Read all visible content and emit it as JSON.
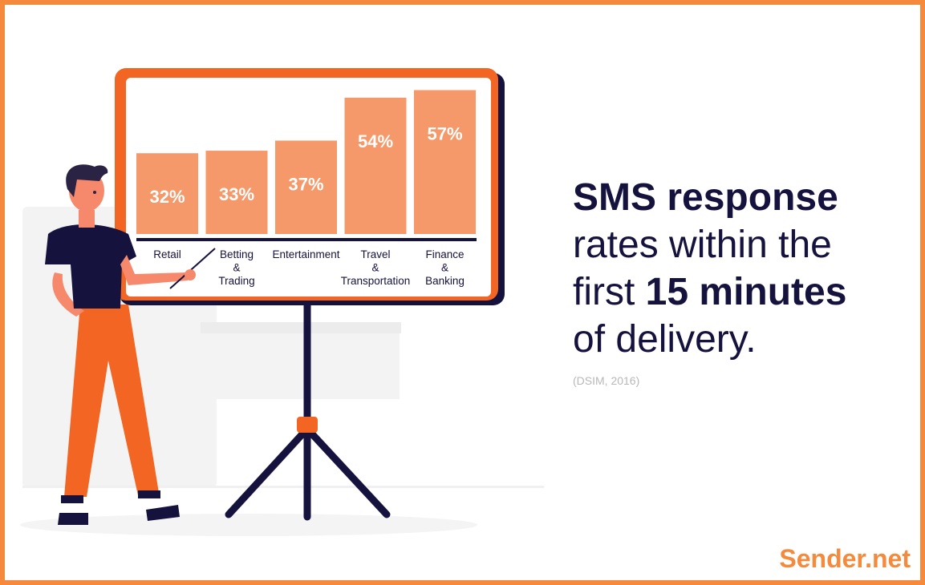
{
  "chart_data": {
    "type": "bar",
    "categories": [
      "Retail",
      "Betting & Trading",
      "Entertainment",
      "Travel & Transportation",
      "Finance & Banking"
    ],
    "values": [
      32,
      33,
      37,
      54,
      57
    ],
    "value_labels": [
      "32%",
      "33%",
      "37%",
      "54%",
      "57%"
    ],
    "color": "#f6996a"
  },
  "headline": [
    {
      "text": "SMS",
      "bold": true,
      "line": 1
    },
    {
      "text": "response",
      "bold": true,
      "line": 1
    },
    {
      "text": "rates within the",
      "bold": false,
      "line": 2
    },
    {
      "text": "first",
      "bold": false,
      "line": 3
    },
    {
      "text": "15 minutes",
      "bold": true,
      "line": 3
    },
    {
      "text": "of delivery.",
      "bold": false,
      "line": 4
    }
  ],
  "source": "(DSIM, 2016)",
  "brand": "Sender.net"
}
